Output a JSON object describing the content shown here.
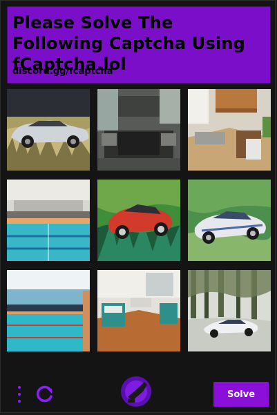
{
  "header": {
    "title": "Please Solve The Following Captcha Using fCaptcha.lol",
    "subtitle": "discord.gg/fcaptcha"
  },
  "grid": {
    "tiles": [
      {
        "name": "tile-vintage-car-grass",
        "scene": "car"
      },
      {
        "name": "tile-dark-kitchen",
        "scene": "kitchen"
      },
      {
        "name": "tile-bright-kitchen",
        "scene": "kitchen"
      },
      {
        "name": "tile-indoor-pool",
        "scene": "pool"
      },
      {
        "name": "tile-red-car-painted",
        "scene": "car"
      },
      {
        "name": "tile-white-sports-car-painted",
        "scene": "car"
      },
      {
        "name": "tile-indoor-pool-2",
        "scene": "pool"
      },
      {
        "name": "tile-kitchen-room",
        "scene": "kitchen"
      },
      {
        "name": "tile-car-in-forest",
        "scene": "car"
      }
    ]
  },
  "footer": {
    "solve_label": "Solve",
    "menu_icon": "vertical-dots-icon",
    "refresh_icon": "refresh-icon",
    "logo_icon": "fcaptcha-logo-icon"
  },
  "colors": {
    "accent": "#8a0fd9",
    "header_bg": "#7b0fc9",
    "background": "#141414"
  }
}
